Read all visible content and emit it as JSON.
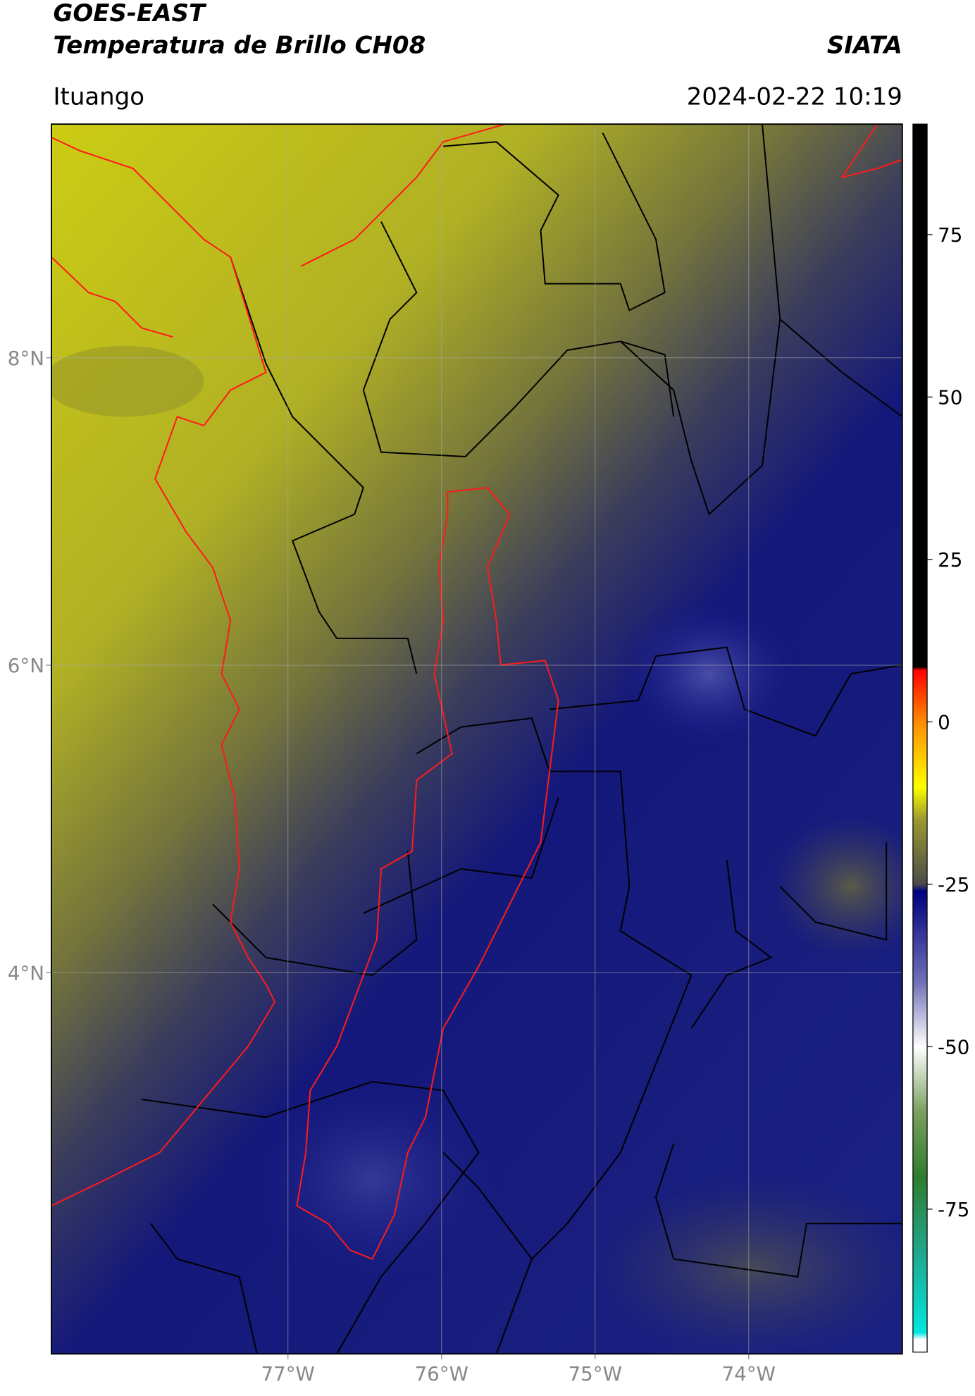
{
  "header": {
    "title": "GOES-EAST",
    "subtitle": "Temperatura de Brillo CH08",
    "brand": "SIATA",
    "location": "Ituango",
    "timestamp": "2024-02-22 10:19"
  },
  "map": {
    "xlim": [
      -78.54,
      -73.0
    ],
    "ylim": [
      1.52,
      9.52
    ],
    "xticks": [
      {
        "value": -77,
        "label": "77°W"
      },
      {
        "value": -76,
        "label": "76°W"
      },
      {
        "value": -75,
        "label": "75°W"
      },
      {
        "value": -74,
        "label": "74°W"
      }
    ],
    "yticks": [
      {
        "value": 8,
        "label": "8°N"
      },
      {
        "value": 6,
        "label": "6°N"
      },
      {
        "value": 4,
        "label": "4°N"
      }
    ],
    "grid": true
  },
  "colorbar": {
    "lim": [
      -97,
      92
    ],
    "ticks": [
      75,
      50,
      25,
      0,
      -25,
      -50,
      -75
    ],
    "stops": [
      {
        "value": -97,
        "color": "#ffffff"
      },
      {
        "value": -95,
        "color": "#ffffff"
      },
      {
        "value": -94,
        "color": "#00e8e0"
      },
      {
        "value": -82,
        "color": "#20a890"
      },
      {
        "value": -70,
        "color": "#2e7d2e"
      },
      {
        "value": -60,
        "color": "#7aa060"
      },
      {
        "value": -50,
        "color": "#ffffff"
      },
      {
        "value": -40,
        "color": "#7070b8"
      },
      {
        "value": -26,
        "color": "#000080"
      },
      {
        "value": -25,
        "color": "#4a4a4a"
      },
      {
        "value": -15,
        "color": "#9a9a30"
      },
      {
        "value": -10,
        "color": "#ffff00"
      },
      {
        "value": 0,
        "color": "#ff8c00"
      },
      {
        "value": 8,
        "color": "#ff0000"
      },
      {
        "value": 8.5,
        "color": "#000000"
      },
      {
        "value": 92,
        "color": "#000000"
      }
    ]
  }
}
